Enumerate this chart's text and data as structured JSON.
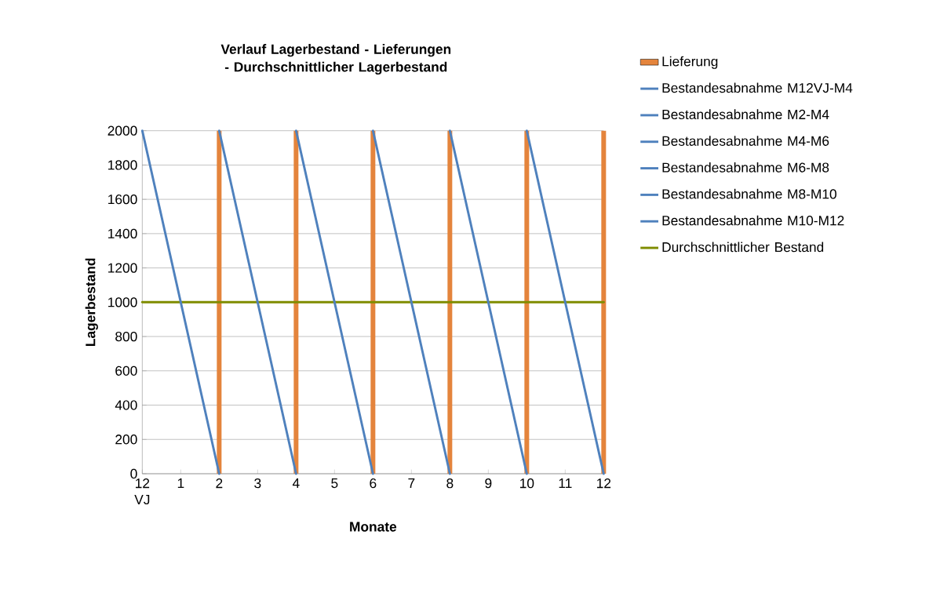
{
  "chart_data": {
    "type": "line",
    "title": "Verlauf Lagerbestand - Lieferungen - Durchschnittlicher Lagerbestand",
    "xlabel": "Monate",
    "ylabel": "Lagerbestand",
    "categories": [
      "12 VJ",
      "1",
      "2",
      "3",
      "4",
      "5",
      "6",
      "7",
      "8",
      "9",
      "10",
      "11",
      "12"
    ],
    "series": [
      {
        "name": "Lieferung",
        "type": "bar",
        "color": "#e4843c",
        "values": [
          null,
          null,
          2000,
          null,
          2000,
          null,
          2000,
          null,
          2000,
          null,
          2000,
          null,
          2000
        ]
      },
      {
        "name": "Bestandesabnahme M12VJ-M4",
        "color": "#4f81bd",
        "values": [
          2000,
          1000,
          0,
          null,
          null,
          null,
          null,
          null,
          null,
          null,
          null,
          null,
          null
        ]
      },
      {
        "name": "Bestandesabnahme M2-M4",
        "color": "#4f81bd",
        "values": [
          null,
          null,
          2000,
          1000,
          0,
          null,
          null,
          null,
          null,
          null,
          null,
          null,
          null
        ]
      },
      {
        "name": "Bestandesabnahme M4-M6",
        "color": "#4f81bd",
        "values": [
          null,
          null,
          null,
          null,
          2000,
          1000,
          0,
          null,
          null,
          null,
          null,
          null,
          null
        ]
      },
      {
        "name": "Bestandesabnahme M6-M8",
        "color": "#4f81bd",
        "values": [
          null,
          null,
          null,
          null,
          null,
          null,
          2000,
          1000,
          0,
          null,
          null,
          null,
          null
        ]
      },
      {
        "name": "Bestandesabnahme M8-M10",
        "color": "#4f81bd",
        "values": [
          null,
          null,
          null,
          null,
          null,
          null,
          null,
          null,
          2000,
          1000,
          0,
          null,
          null
        ]
      },
      {
        "name": "Bestandesabnahme M10-M12",
        "color": "#4f81bd",
        "values": [
          null,
          null,
          null,
          null,
          null,
          null,
          null,
          null,
          null,
          null,
          2000,
          1000,
          0
        ]
      },
      {
        "name": "Durchschnittlicher Bestand",
        "color": "#7f8c00",
        "values": [
          1000,
          1000,
          1000,
          1000,
          1000,
          1000,
          1000,
          1000,
          1000,
          1000,
          1000,
          1000,
          1000
        ]
      }
    ],
    "ylim": [
      0,
      2000
    ],
    "yticks": [
      0,
      200,
      400,
      600,
      800,
      1000,
      1200,
      1400,
      1600,
      1800,
      2000
    ],
    "grid": "y",
    "legend": "right"
  }
}
